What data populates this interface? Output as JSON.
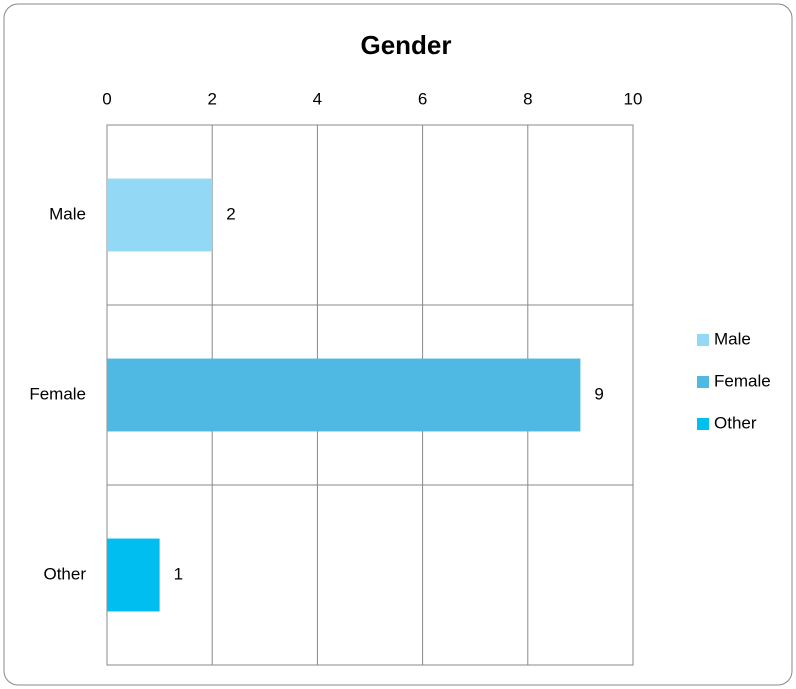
{
  "chart_data": {
    "type": "bar",
    "orientation": "horizontal",
    "title": "Gender",
    "categories": [
      "Male",
      "Female",
      "Other"
    ],
    "series": [
      {
        "name": "Male",
        "color": "#93d9f5",
        "values": [
          2,
          null,
          null
        ]
      },
      {
        "name": "Female",
        "color": "#4fb9e3",
        "values": [
          null,
          9,
          null
        ]
      },
      {
        "name": "Other",
        "color": "#00bff0",
        "values": [
          null,
          null,
          1
        ]
      }
    ],
    "xlim": [
      0,
      10
    ],
    "xticks": [
      0,
      2,
      4,
      6,
      8,
      10
    ],
    "grid": true,
    "legend": "right"
  }
}
